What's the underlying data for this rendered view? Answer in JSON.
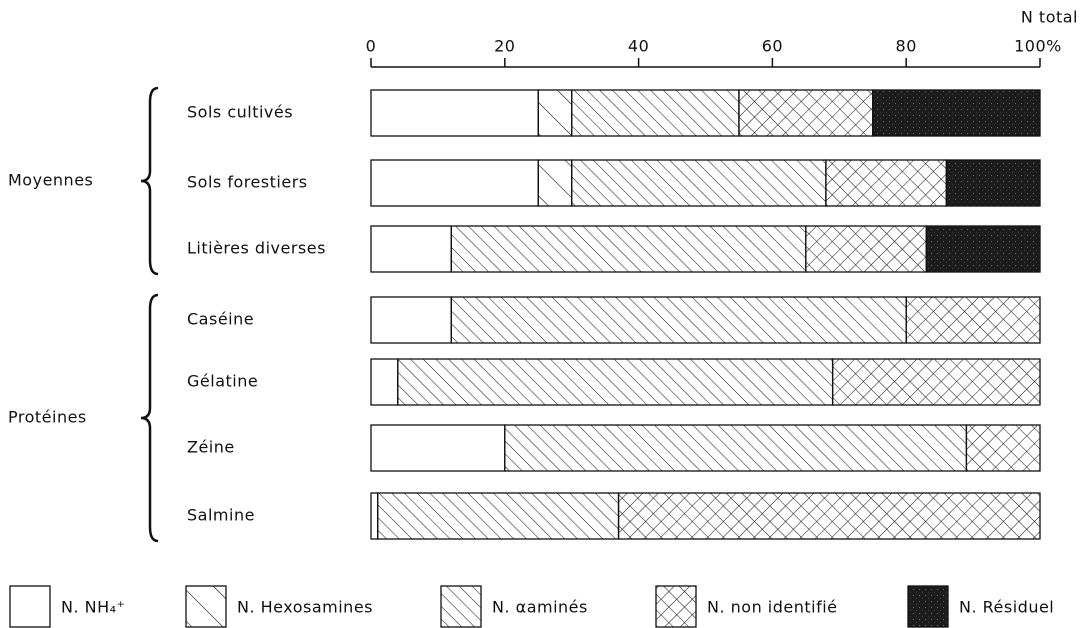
{
  "chart_data": {
    "type": "stacked-barh",
    "xlabel": "N total",
    "groups": [
      "Moyennes",
      "Protéines"
    ],
    "categories": [
      "Sols cultivés",
      "Sols forestiers",
      "Litières diverses",
      "Caséine",
      "Gélatine",
      "Zéine",
      "Salmine"
    ],
    "series": [
      {
        "name": "N. NH₄⁺",
        "color": "#ffffff",
        "pattern": "none",
        "values": [
          25,
          25,
          12,
          12,
          4,
          20,
          1
        ]
      },
      {
        "name": "N. Hexosamines",
        "color": "#ffffff",
        "pattern": "hatch-sparse",
        "values": [
          5,
          5,
          0,
          0,
          0,
          0,
          0
        ]
      },
      {
        "name": "N. αaminés",
        "color": "#ffffff",
        "pattern": "hatch-dense",
        "values": [
          25,
          38,
          53,
          68,
          65,
          69,
          36
        ]
      },
      {
        "name": "N. non identifié",
        "color": "#ffffff",
        "pattern": "crosshatch",
        "values": [
          20,
          18,
          18,
          20,
          31,
          11,
          63
        ]
      },
      {
        "name": "N. Résiduel",
        "color": "#1c1c1c",
        "pattern": "stipple",
        "values": [
          25,
          14,
          17,
          0,
          0,
          0,
          0
        ]
      }
    ],
    "xlim": [
      0,
      100
    ],
    "xticks": [
      0,
      20,
      40,
      60,
      80,
      {
        "value": 100,
        "label": "100%"
      }
    ]
  }
}
